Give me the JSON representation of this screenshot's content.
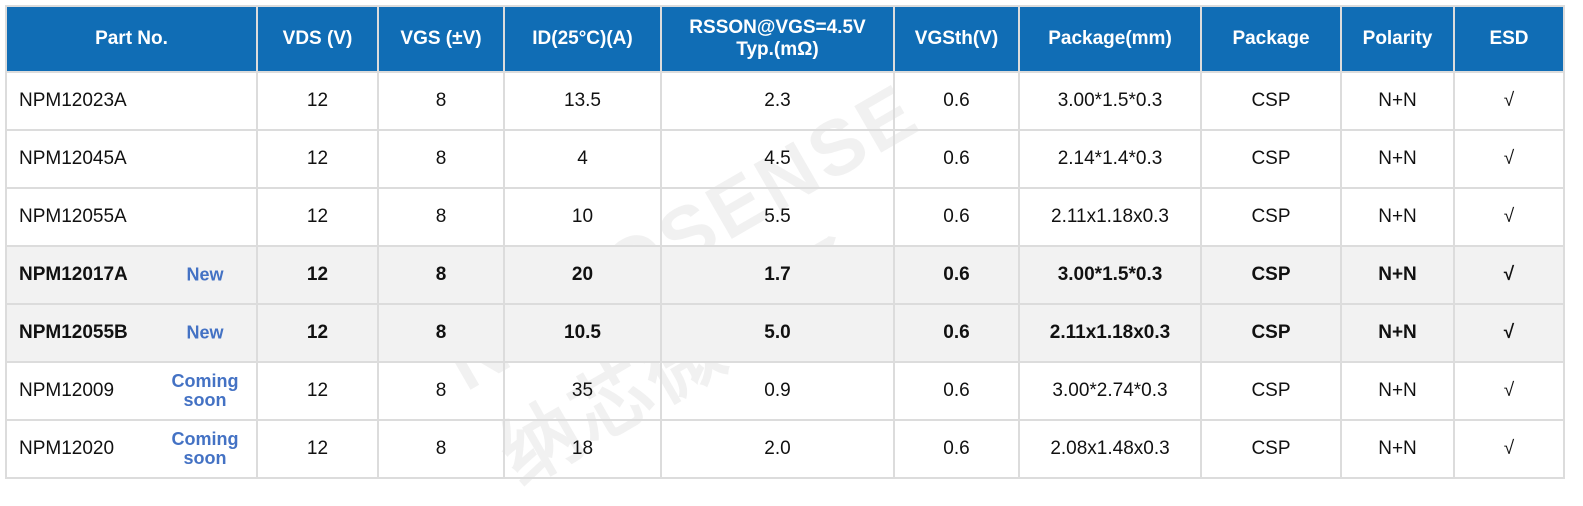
{
  "headers": [
    "Part No.",
    "VDS (V)",
    "VGS (±V)",
    "ID(25°C)(A)",
    "RSSON@VGS=4.5V Typ.(mΩ)",
    "VGSth(V)",
    "Package(mm)",
    "Package",
    "Polarity",
    "ESD"
  ],
  "rows": [
    {
      "part": "NPM12023A",
      "tag": "",
      "highlight": false,
      "cells": [
        "12",
        "8",
        "13.5",
        "2.3",
        "0.6",
        "3.00*1.5*0.3",
        "CSP",
        "N+N",
        "√"
      ]
    },
    {
      "part": "NPM12045A",
      "tag": "",
      "highlight": false,
      "cells": [
        "12",
        "8",
        "4",
        "4.5",
        "0.6",
        "2.14*1.4*0.3",
        "CSP",
        "N+N",
        "√"
      ]
    },
    {
      "part": "NPM12055A",
      "tag": "",
      "highlight": false,
      "cells": [
        "12",
        "8",
        "10",
        "5.5",
        "0.6",
        "2.11x1.18x0.3",
        "CSP",
        "N+N",
        "√"
      ]
    },
    {
      "part": "NPM12017A",
      "tag": "New",
      "highlight": true,
      "cells": [
        "12",
        "8",
        "20",
        "1.7",
        "0.6",
        "3.00*1.5*0.3",
        "CSP",
        "N+N",
        "√"
      ]
    },
    {
      "part": "NPM12055B",
      "tag": "New",
      "highlight": true,
      "cells": [
        "12",
        "8",
        "10.5",
        "5.0",
        "0.6",
        "2.11x1.18x0.3",
        "CSP",
        "N+N",
        "√"
      ]
    },
    {
      "part": "NPM12009",
      "tag": "Coming soon",
      "highlight": false,
      "cells": [
        "12",
        "8",
        "35",
        "0.9",
        "0.6",
        "3.00*2.74*0.3",
        "CSP",
        "N+N",
        "√"
      ]
    },
    {
      "part": "NPM12020",
      "tag": "Coming soon",
      "highlight": false,
      "cells": [
        "12",
        "8",
        "18",
        "2.0",
        "0.6",
        "2.08x1.48x0.3",
        "CSP",
        "N+N",
        "√"
      ]
    }
  ],
  "watermark": "NOVOSENSE 纳芯微电子",
  "colors": {
    "header_bg": "#106db5",
    "tag": "#4472c4",
    "highlight_row": "#f2f2f2"
  }
}
